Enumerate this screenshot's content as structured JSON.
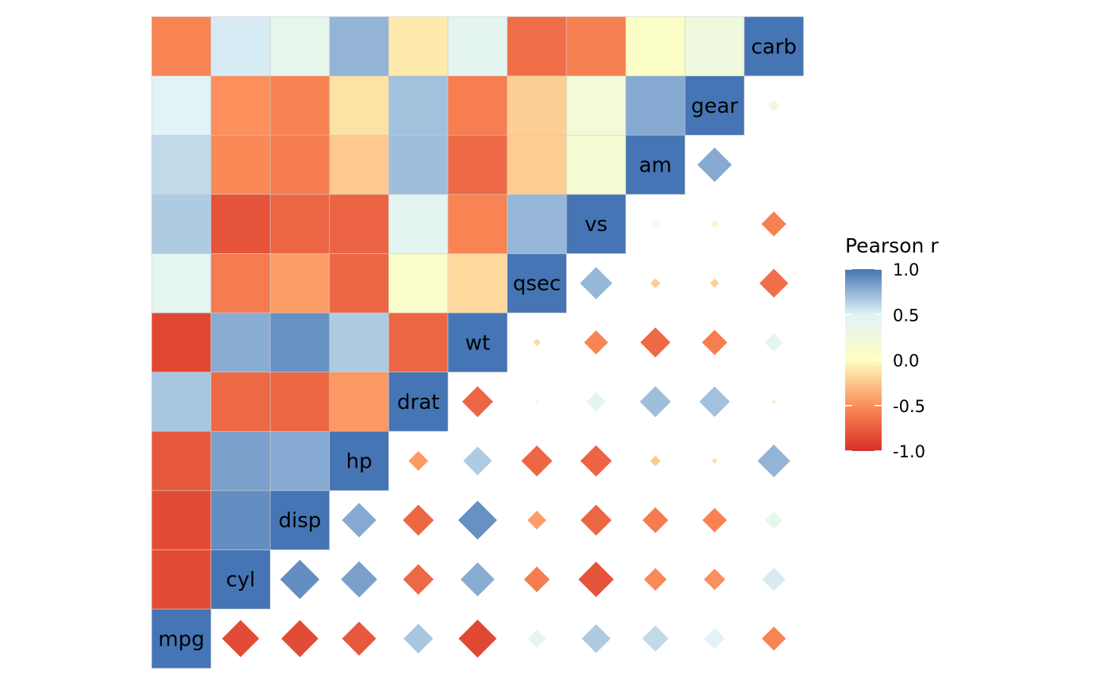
{
  "chart_data": {
    "type": "heatmap",
    "variables": [
      "mpg",
      "cyl",
      "disp",
      "hp",
      "drat",
      "wt",
      "qsec",
      "vs",
      "am",
      "gear",
      "carb"
    ],
    "correlation_matrix": [
      [
        1.0,
        -0.85,
        -0.85,
        -0.78,
        0.68,
        -0.87,
        0.42,
        0.66,
        0.6,
        0.48,
        -0.55
      ],
      [
        -0.85,
        1.0,
        0.9,
        0.83,
        -0.7,
        0.78,
        -0.59,
        -0.81,
        -0.52,
        -0.49,
        0.53
      ],
      [
        -0.85,
        0.9,
        1.0,
        0.79,
        -0.71,
        0.89,
        -0.43,
        -0.71,
        -0.59,
        -0.56,
        0.39
      ],
      [
        -0.78,
        0.83,
        0.79,
        1.0,
        -0.45,
        0.66,
        -0.71,
        -0.72,
        -0.24,
        -0.13,
        0.75
      ],
      [
        0.68,
        -0.7,
        -0.71,
        -0.45,
        1.0,
        -0.71,
        0.09,
        0.44,
        0.71,
        0.7,
        -0.09
      ],
      [
        -0.87,
        0.78,
        0.89,
        0.66,
        -0.71,
        1.0,
        -0.17,
        -0.55,
        -0.69,
        -0.58,
        0.43
      ],
      [
        0.42,
        -0.59,
        -0.43,
        -0.71,
        0.09,
        -0.17,
        1.0,
        0.74,
        -0.23,
        -0.21,
        -0.66
      ],
      [
        0.66,
        -0.81,
        -0.71,
        -0.72,
        0.44,
        -0.55,
        0.74,
        1.0,
        0.17,
        0.21,
        -0.57
      ],
      [
        0.6,
        -0.52,
        -0.59,
        -0.24,
        0.71,
        -0.69,
        -0.23,
        0.17,
        1.0,
        0.79,
        0.06
      ],
      [
        0.48,
        -0.49,
        -0.56,
        -0.13,
        0.7,
        -0.58,
        -0.21,
        0.21,
        0.79,
        1.0,
        0.27
      ],
      [
        -0.55,
        0.53,
        0.39,
        0.75,
        -0.09,
        0.43,
        -0.66,
        -0.57,
        0.06,
        0.27,
        1.0
      ]
    ],
    "lower_triangle": "tile",
    "upper_triangle": "diamond sized by |r|",
    "color_scale": {
      "name": "Pearson r",
      "limits": [
        -1.0,
        1.0
      ],
      "ticks": [
        "1.0",
        "0.5",
        "0.0",
        "-0.5",
        "-1.0"
      ],
      "stops": [
        {
          "value": -1.0,
          "color": "#d73027"
        },
        {
          "value": -0.5,
          "color": "#fc8d59"
        },
        {
          "value": 0.0,
          "color": "#ffffbf"
        },
        {
          "value": 0.5,
          "color": "#e0f3f8"
        },
        {
          "value": 1.0,
          "color": "#4575b4"
        }
      ]
    },
    "legend_position": "right",
    "grid": false
  }
}
